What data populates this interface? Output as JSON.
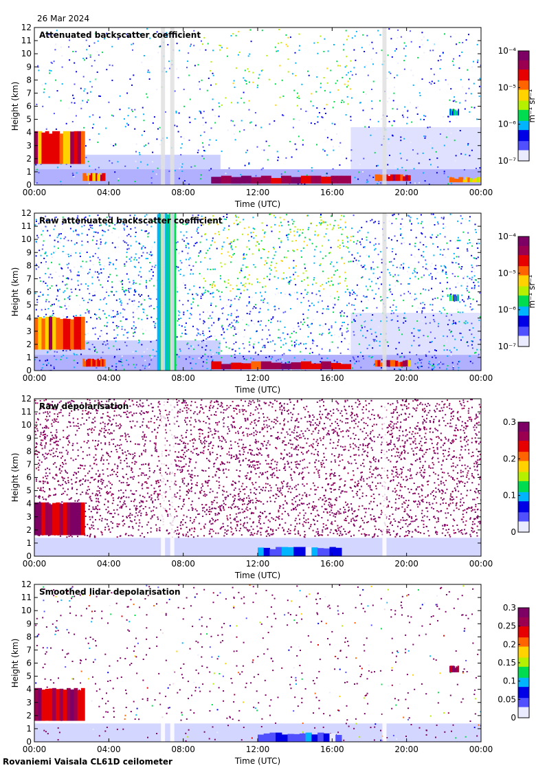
{
  "figure": {
    "date": "26 Mar 2024",
    "footer": "Rovaniemi Vaisala CL61D ceilometer"
  },
  "colors": {
    "scale": [
      "#ebebff",
      "#5050ff",
      "#0000e6",
      "#00b4ff",
      "#00dc50",
      "#b4f000",
      "#ffd200",
      "#ff6400",
      "#e60000",
      "#9b0050",
      "#7d0064"
    ],
    "clear_air": "#e0e0e0"
  },
  "chart_data": [
    {
      "type": "heatmap",
      "title": "Attenuated backscatter coefficient",
      "xlabel": "Time (UTC)",
      "ylabel": "Height (km)",
      "xticks": [
        "00:00",
        "04:00",
        "08:00",
        "12:00",
        "16:00",
        "20:00",
        "00:00"
      ],
      "xlim": [
        0,
        24
      ],
      "ylim": [
        0,
        12
      ],
      "yticks": [
        0,
        1,
        2,
        3,
        4,
        5,
        6,
        7,
        8,
        9,
        10,
        11,
        12
      ],
      "colorbar": {
        "scale": "log",
        "range": [
          1e-07,
          0.0001
        ],
        "ticks": [
          "10⁻⁷",
          "10⁻⁶",
          "10⁻⁵",
          "10⁻⁴"
        ],
        "unit": "m⁻¹ sr⁻¹"
      },
      "features": [
        {
          "t0": 0.0,
          "t1": 2.7,
          "h0": 1.6,
          "h1": 4.1,
          "level": 0.72
        },
        {
          "t0": 2.6,
          "t1": 3.8,
          "h0": 0.3,
          "h1": 0.9,
          "level": 0.7
        },
        {
          "t0": 9.5,
          "t1": 17.0,
          "h0": 0.1,
          "h1": 0.7,
          "level": 0.82
        },
        {
          "t0": 18.3,
          "t1": 20.2,
          "h0": 0.3,
          "h1": 0.8,
          "level": 0.75
        },
        {
          "t0": 22.3,
          "t1": 24.0,
          "h0": 0.2,
          "h1": 0.6,
          "level": 0.65
        },
        {
          "t0": 22.3,
          "t1": 22.8,
          "h0": 5.3,
          "h1": 5.8,
          "level": 0.35
        }
      ]
    },
    {
      "type": "heatmap",
      "title": "Raw attenuated backscatter coefficient",
      "xlabel": "Time (UTC)",
      "ylabel": "Height (km)",
      "xticks": [
        "00:00",
        "04:00",
        "08:00",
        "12:00",
        "16:00",
        "20:00",
        "00:00"
      ],
      "xlim": [
        0,
        24
      ],
      "ylim": [
        0,
        12
      ],
      "yticks": [
        0,
        1,
        2,
        3,
        4,
        5,
        6,
        7,
        8,
        9,
        10,
        11,
        12
      ],
      "colorbar": {
        "scale": "log",
        "range": [
          1e-07,
          0.0001
        ],
        "ticks": [
          "10⁻⁷",
          "10⁻⁶",
          "10⁻⁵",
          "10⁻⁴"
        ],
        "unit": "m⁻¹ sr⁻¹"
      },
      "features": [
        {
          "t0": 0.0,
          "t1": 2.7,
          "h0": 1.6,
          "h1": 4.1,
          "level": 0.72
        },
        {
          "t0": 2.6,
          "t1": 3.8,
          "h0": 0.3,
          "h1": 0.9,
          "level": 0.7
        },
        {
          "t0": 9.5,
          "t1": 17.0,
          "h0": 0.1,
          "h1": 0.7,
          "level": 0.82
        },
        {
          "t0": 18.3,
          "t1": 20.2,
          "h0": 0.3,
          "h1": 0.8,
          "level": 0.75
        },
        {
          "t0": 6.6,
          "t1": 7.6,
          "h0": 0.0,
          "h1": 12.0,
          "level": 0.4
        },
        {
          "t0": 22.3,
          "t1": 22.8,
          "h0": 5.3,
          "h1": 5.8,
          "level": 0.35
        }
      ]
    },
    {
      "type": "heatmap",
      "title": "Raw depolarisation",
      "xlabel": "Time (UTC)",
      "ylabel": "Height (km)",
      "xticks": [
        "00:00",
        "04:00",
        "08:00",
        "12:00",
        "16:00",
        "20:00",
        "00:00"
      ],
      "xlim": [
        0,
        24
      ],
      "ylim": [
        0,
        12
      ],
      "yticks": [
        0,
        1,
        2,
        3,
        4,
        5,
        6,
        7,
        8,
        9,
        10,
        11,
        12
      ],
      "colorbar": {
        "scale": "linear",
        "range": [
          0,
          0.3
        ],
        "ticks": [
          "0",
          "0.1",
          "0.2",
          "0.3"
        ],
        "unit": ""
      },
      "features": [
        {
          "t0": 0.0,
          "t1": 2.7,
          "h0": 1.6,
          "h1": 4.1,
          "level": 0.85
        },
        {
          "t0": 12.0,
          "t1": 16.5,
          "h0": 0.0,
          "h1": 0.7,
          "level": 0.2
        }
      ]
    },
    {
      "type": "heatmap",
      "title": "Smoothed lidar depolarisation",
      "xlabel": "Time (UTC)",
      "ylabel": "Height (km)",
      "xticks": [
        "00:00",
        "04:00",
        "08:00",
        "12:00",
        "16:00",
        "20:00",
        "00:00"
      ],
      "xlim": [
        0,
        24
      ],
      "ylim": [
        0,
        12
      ],
      "yticks": [
        0,
        1,
        2,
        3,
        4,
        5,
        6,
        7,
        8,
        9,
        10,
        11,
        12
      ],
      "colorbar": {
        "scale": "linear",
        "range": [
          0,
          0.3
        ],
        "ticks": [
          "0",
          "0.05",
          "0.1",
          "0.15",
          "0.2",
          "0.25",
          "0.3"
        ],
        "unit": ""
      },
      "features": [
        {
          "t0": 0.0,
          "t1": 2.7,
          "h0": 1.6,
          "h1": 4.1,
          "level": 0.85
        },
        {
          "t0": 12.0,
          "t1": 16.5,
          "h0": 0.0,
          "h1": 0.7,
          "level": 0.2
        },
        {
          "t0": 22.3,
          "t1": 22.8,
          "h0": 5.3,
          "h1": 5.8,
          "level": 0.9
        }
      ]
    }
  ]
}
